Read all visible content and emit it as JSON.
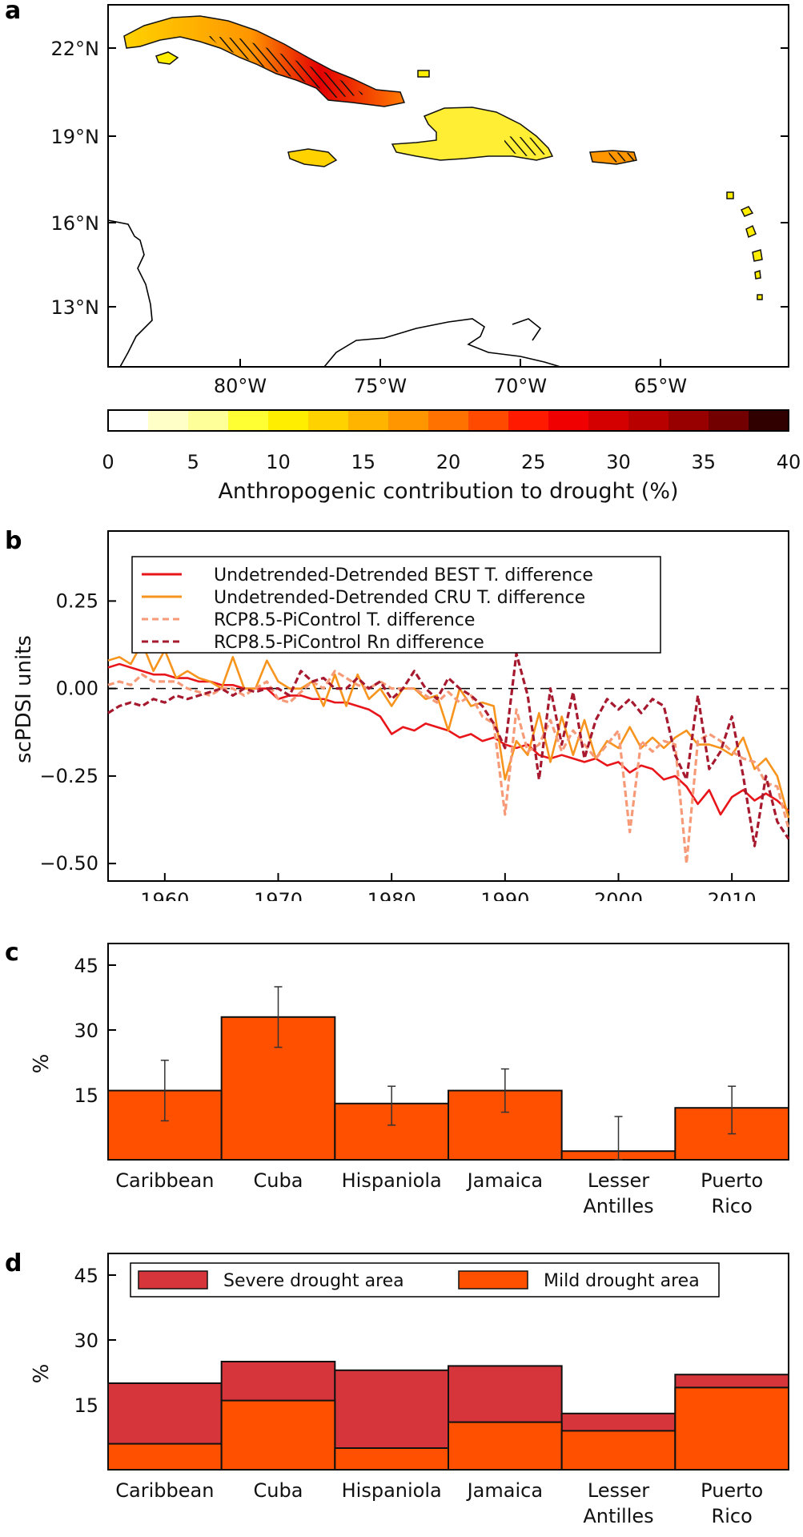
{
  "panels": {
    "a": {
      "label": "a",
      "lat_ticks": [
        "22°N",
        "19°N",
        "16°N",
        "13°N"
      ],
      "lon_ticks": [
        "80°W",
        "75°W",
        "70°W",
        "65°W"
      ],
      "colorbar": {
        "ticks": [
          "0",
          "5",
          "10",
          "15",
          "20",
          "25",
          "30",
          "35",
          "40"
        ],
        "title": "Anthropogenic contribution to drought (%)",
        "colors": [
          "#ffffff",
          "#ffffc8",
          "#ffff99",
          "#ffff33",
          "#ffee00",
          "#ffd200",
          "#ffb400",
          "#ff9600",
          "#ff7200",
          "#ff4a00",
          "#ff1a00",
          "#f00000",
          "#d40000",
          "#b80000",
          "#980000",
          "#720000",
          "#300000"
        ]
      },
      "islands": [
        "Cuba",
        "Hispaniola",
        "Jamaica",
        "Puerto Rico",
        "Lesser Antilles"
      ]
    },
    "b": {
      "label": "b"
    },
    "c": {
      "label": "c"
    },
    "d": {
      "label": "d"
    }
  },
  "chart_data": [
    {
      "type": "line",
      "panel": "b",
      "ylabel": "scPDSI units",
      "xlim": [
        1955,
        2015
      ],
      "ylim": [
        -0.55,
        0.45
      ],
      "x_ticks": [
        1960,
        1970,
        1980,
        1990,
        2000,
        2010
      ],
      "y_ticks": [
        0.25,
        0.0,
        -0.25,
        -0.5
      ],
      "y_tick_labels": [
        "0.25",
        "0.00",
        "−0.25",
        "−0.50"
      ],
      "zero_line": true,
      "legend_position": "top",
      "x": [
        1955,
        1956,
        1957,
        1958,
        1959,
        1960,
        1961,
        1962,
        1963,
        1964,
        1965,
        1966,
        1967,
        1968,
        1969,
        1970,
        1971,
        1972,
        1973,
        1974,
        1975,
        1976,
        1977,
        1978,
        1979,
        1980,
        1981,
        1982,
        1983,
        1984,
        1985,
        1986,
        1987,
        1988,
        1989,
        1990,
        1991,
        1992,
        1993,
        1994,
        1995,
        1996,
        1997,
        1998,
        1999,
        2000,
        2001,
        2002,
        2003,
        2004,
        2005,
        2006,
        2007,
        2008,
        2009,
        2010,
        2011,
        2012,
        2013,
        2014,
        2015
      ],
      "series": [
        {
          "name": "Undetrended-Detrended BEST T. difference",
          "color": "#e8161a",
          "dash": "solid",
          "values": [
            0.06,
            0.07,
            0.06,
            0.05,
            0.04,
            0.04,
            0.03,
            0.03,
            0.02,
            0.02,
            0.01,
            0.01,
            0.0,
            0.0,
            0.0,
            -0.03,
            -0.02,
            -0.02,
            -0.03,
            -0.03,
            -0.04,
            -0.04,
            -0.05,
            -0.06,
            -0.08,
            -0.13,
            -0.11,
            -0.12,
            -0.1,
            -0.11,
            -0.12,
            -0.14,
            -0.13,
            -0.15,
            -0.14,
            -0.16,
            -0.17,
            -0.16,
            -0.19,
            -0.2,
            -0.19,
            -0.2,
            -0.21,
            -0.2,
            -0.22,
            -0.21,
            -0.24,
            -0.22,
            -0.23,
            -0.26,
            -0.25,
            -0.28,
            -0.33,
            -0.29,
            -0.36,
            -0.31,
            -0.29,
            -0.32,
            -0.3,
            -0.32,
            -0.35
          ]
        },
        {
          "name": "Undetrended-Detrended CRU T. difference",
          "color": "#f7941d",
          "dash": "solid",
          "values": [
            0.08,
            0.09,
            0.07,
            0.13,
            0.05,
            0.11,
            0.03,
            0.05,
            0.03,
            0.02,
            0.0,
            0.09,
            0.0,
            0.0,
            0.08,
            0.02,
            0.0,
            0.0,
            0.02,
            -0.05,
            0.04,
            -0.05,
            0.04,
            -0.03,
            0.0,
            -0.05,
            0.0,
            0.0,
            -0.03,
            -0.02,
            -0.12,
            0.0,
            -0.05,
            -0.04,
            -0.05,
            -0.26,
            -0.15,
            -0.19,
            -0.07,
            -0.21,
            -0.08,
            -0.19,
            -0.09,
            -0.2,
            -0.15,
            -0.17,
            -0.11,
            -0.17,
            -0.14,
            -0.17,
            -0.14,
            -0.12,
            -0.16,
            -0.16,
            -0.17,
            -0.19,
            -0.14,
            -0.23,
            -0.2,
            -0.25,
            -0.37
          ]
        },
        {
          "name": "RCP8.5-PiControl T. difference",
          "color": "#f69a78",
          "dash": "dashed",
          "values": [
            0.01,
            0.02,
            0.01,
            0.04,
            0.02,
            0.02,
            0.02,
            0.0,
            -0.01,
            -0.02,
            0.0,
            0.0,
            -0.02,
            0.0,
            0.02,
            -0.03,
            -0.04,
            -0.01,
            0.02,
            0.0,
            0.05,
            0.03,
            0.01,
            0.0,
            0.02,
            0.0,
            0.0,
            0.0,
            -0.02,
            -0.04,
            -0.01,
            -0.04,
            -0.02,
            -0.08,
            -0.1,
            -0.36,
            -0.06,
            -0.18,
            -0.16,
            -0.09,
            -0.18,
            -0.12,
            -0.16,
            -0.2,
            -0.16,
            -0.12,
            -0.41,
            -0.15,
            -0.18,
            -0.15,
            -0.16,
            -0.5,
            -0.15,
            -0.13,
            -0.15,
            -0.18,
            -0.2,
            -0.21,
            -0.27,
            -0.28,
            -0.4
          ]
        },
        {
          "name": "RCP8.5-PiControl Rn difference",
          "color": "#a6192e",
          "dash": "dashed",
          "values": [
            -0.07,
            -0.05,
            -0.04,
            -0.05,
            -0.03,
            -0.04,
            -0.02,
            -0.03,
            -0.02,
            -0.01,
            0.0,
            -0.02,
            0.0,
            -0.01,
            0.0,
            0.0,
            -0.02,
            0.05,
            0.02,
            0.03,
            0.0,
            0.0,
            0.03,
            0.0,
            0.02,
            -0.03,
            0.0,
            0.05,
            0.0,
            -0.03,
            0.03,
            0.0,
            -0.02,
            -0.05,
            -0.1,
            -0.17,
            0.1,
            -0.02,
            -0.26,
            0.0,
            -0.16,
            -0.01,
            -0.2,
            -0.09,
            -0.03,
            -0.06,
            -0.03,
            -0.07,
            -0.03,
            -0.05,
            -0.19,
            -0.26,
            -0.02,
            -0.23,
            -0.18,
            -0.08,
            -0.25,
            -0.45,
            -0.25,
            -0.38,
            -0.43
          ]
        }
      ]
    },
    {
      "type": "bar",
      "panel": "c",
      "ylabel": "%",
      "ylim": [
        0,
        50
      ],
      "y_ticks": [
        15,
        30,
        45
      ],
      "categories": [
        "Caribbean",
        "Cuba",
        "Hispaniola",
        "Jamaica",
        "Lesser\nAntilles",
        "Puerto\nRico"
      ],
      "values": [
        16,
        33,
        13,
        16,
        2,
        12
      ],
      "error_low": [
        9,
        26,
        8,
        11,
        0,
        6
      ],
      "error_high": [
        23,
        40,
        17,
        21,
        10,
        17
      ],
      "color": "#ff5000"
    },
    {
      "type": "bar",
      "panel": "d",
      "ylabel": "%",
      "ylim": [
        0,
        50
      ],
      "y_ticks": [
        15,
        30,
        45
      ],
      "categories": [
        "Caribbean",
        "Cuba",
        "Hispaniola",
        "Jamaica",
        "Lesser\nAntilles",
        "Puerto\nRico"
      ],
      "legend_position": "top",
      "series": [
        {
          "name": "Severe drought area",
          "color": "#d6363b",
          "values": [
            20,
            25,
            23,
            24,
            13,
            22
          ]
        },
        {
          "name": "Mild drought area",
          "color": "#ff5000",
          "values": [
            6,
            16,
            5,
            11,
            9,
            19
          ]
        }
      ]
    }
  ]
}
